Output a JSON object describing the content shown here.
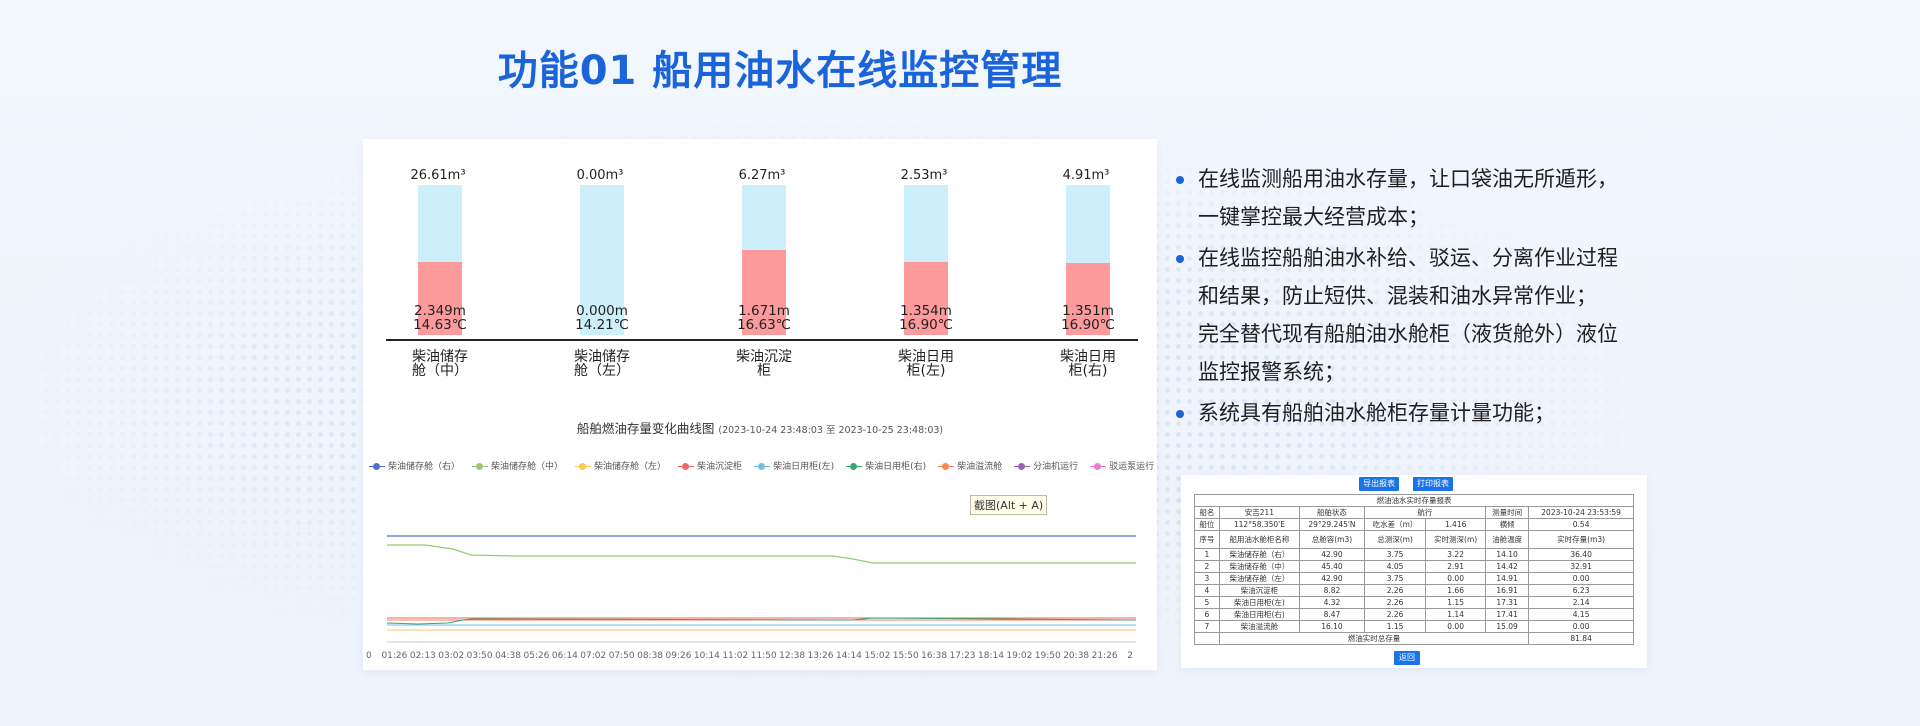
{
  "title": "功能01 船用油水在线监控管理",
  "tanks": [
    {
      "volume": "26.61m³",
      "level": "2.349m",
      "temp": "14.63℃",
      "name_l1": "柴油储存",
      "name_l2": "舱（中）",
      "fill": 0.49
    },
    {
      "volume": "0.00m³",
      "level": "0.000m",
      "temp": "14.21℃",
      "name_l1": "柴油储存",
      "name_l2": "舱（左）",
      "fill": 0.0
    },
    {
      "volume": "6.27m³",
      "level": "1.671m",
      "temp": "16.63℃",
      "name_l1": "柴油沉淀",
      "name_l2": "柜",
      "fill": 0.57
    },
    {
      "volume": "2.53m³",
      "level": "1.354m",
      "temp": "16.90℃",
      "name_l1": "柴油日用",
      "name_l2": "柜(左)",
      "fill": 0.49
    },
    {
      "volume": "4.91m³",
      "level": "1.351m",
      "temp": "16.90℃",
      "name_l1": "柴油日用",
      "name_l2": "柜(右)",
      "fill": 0.48
    }
  ],
  "line_chart": {
    "title": "船舶燃油存量变化曲线图",
    "range": "(2023-10-24 23:48:03 至 2023-10-25 23:48:03)",
    "screenshot_label": "截图(Alt + A)",
    "legend": [
      {
        "name": "柴油储存舱（右）",
        "color": "#5470c6"
      },
      {
        "name": "柴油储存舱（中）",
        "color": "#91cc75"
      },
      {
        "name": "柴油储存舱（左）",
        "color": "#fac858"
      },
      {
        "name": "柴油沉淀柜",
        "color": "#ee6666"
      },
      {
        "name": "柴油日用柜(左)",
        "color": "#73c0de"
      },
      {
        "name": "柴油日用柜(右)",
        "color": "#3ba272"
      },
      {
        "name": "柴油溢流舱",
        "color": "#fc8452"
      },
      {
        "name": "分油机运行",
        "color": "#9a60b4"
      },
      {
        "name": "驳运泵运行",
        "color": "#ea7ccc"
      }
    ],
    "x_ticks": [
      "0",
      "01:26",
      "02:13",
      "03:02",
      "03:50",
      "04:38",
      "05:26",
      "06:14",
      "07:02",
      "07:50",
      "08:38",
      "09:26",
      "10:14",
      "11:02",
      "11:50",
      "12:38",
      "13:26",
      "14:14",
      "15:02",
      "15:50",
      "16:38",
      "17:23",
      "18:14",
      "19:02",
      "19:50",
      "20:38",
      "21:26",
      "2"
    ]
  },
  "bullets": [
    {
      "text": "在线监测船用油水存量，让口袋油无所遁形，",
      "dot": true
    },
    {
      "text": "一键掌控最大经营成本；",
      "dot": false
    },
    {
      "text": "在线监控船舶油水补给、驳运、分离作业过程",
      "dot": true
    },
    {
      "text": "和结果，防止短供、混装和油水异常作业；",
      "dot": false
    },
    {
      "text": "完全替代现有船舶油水舱柜（液货舱外）液位",
      "dot": false
    },
    {
      "text": "监控报警系统；",
      "dot": false
    },
    {
      "text": "系统具有船舶油水舱柜存量计量功能；",
      "dot": true
    }
  ],
  "report": {
    "export_label": "导出报表",
    "print_label": "打印报表",
    "back_label": "返回",
    "caption": "燃油油水实时存量报表",
    "info1": [
      "船名",
      "安吉211",
      "船舶状态",
      "航行",
      "测量时间",
      "2023-10-24 23:53:59"
    ],
    "info2": [
      "船位",
      "112°58.350'E",
      "29°29.245'N",
      "吃水差（m）",
      "1.416",
      "横倾",
      "0.54"
    ],
    "headers": [
      "序号",
      "船用油水舱柜名称",
      "总舱容(m3)",
      "总测深(m)",
      "实时测深(m)",
      "油舱温度",
      "实时存量(m3)"
    ],
    "rows": [
      [
        "1",
        "柴油储存舱（右）",
        "42.90",
        "3.75",
        "3.22",
        "14.10",
        "36.40"
      ],
      [
        "2",
        "柴油储存舱（中）",
        "45.40",
        "4.05",
        "2.91",
        "14.42",
        "32.91"
      ],
      [
        "3",
        "柴油储存舱（左）",
        "42.90",
        "3.75",
        "0.00",
        "14.91",
        "0.00"
      ],
      [
        "4",
        "柴油沉淀柜",
        "8.82",
        "2.26",
        "1.66",
        "16.91",
        "6.23"
      ],
      [
        "5",
        "柴油日用柜(左)",
        "4.32",
        "2.26",
        "1.15",
        "17.31",
        "2.14"
      ],
      [
        "6",
        "柴油日用柜(右)",
        "8.47",
        "2.26",
        "1.14",
        "17.41",
        "4.15"
      ],
      [
        "7",
        "柴油溢流舱",
        "16.10",
        "1.15",
        "0.00",
        "15.09",
        "0.00"
      ]
    ],
    "total_label": "燃油实时总存量",
    "total_value": "81.84"
  }
}
